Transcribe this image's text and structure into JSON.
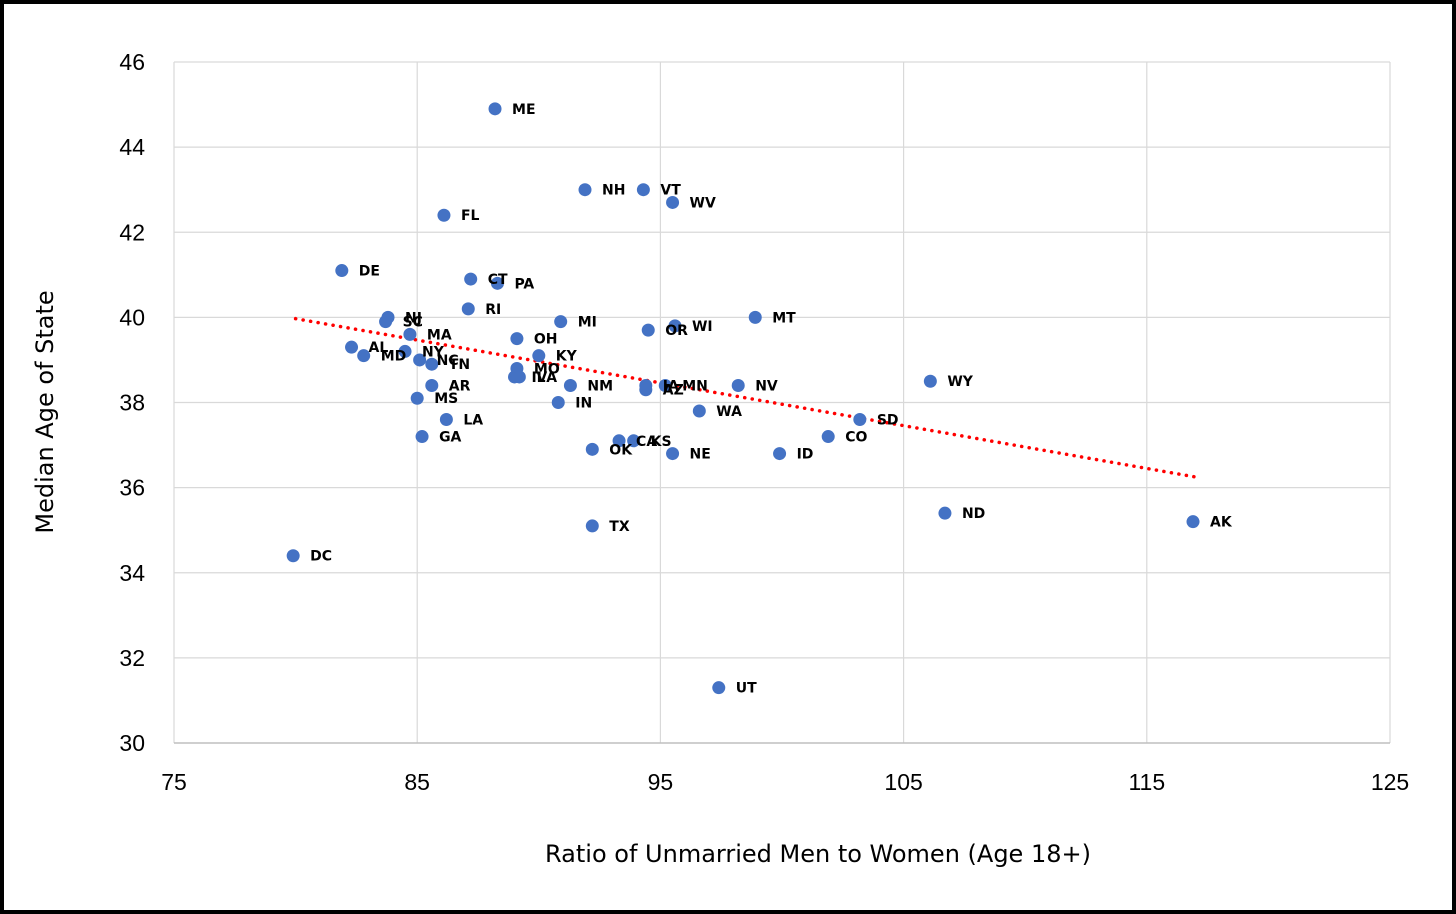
{
  "chart_data": {
    "type": "scatter",
    "title": "",
    "xlabel": "Ratio of Unmarried Men to Women (Age 18+)",
    "ylabel": "Median Age of State",
    "xlim": [
      75,
      125
    ],
    "ylim": [
      30,
      46
    ],
    "xticks": [
      75,
      85,
      95,
      105,
      115,
      125
    ],
    "yticks": [
      30,
      32,
      34,
      36,
      38,
      40,
      42,
      44,
      46
    ],
    "grid": true,
    "legend": "none",
    "point_color": "#4472C4",
    "trendline": {
      "style": "dotted",
      "color": "#FF0000",
      "x": [
        80,
        117
      ],
      "y": [
        39.97,
        36.25
      ]
    },
    "points": [
      {
        "label": "ME",
        "x": 88.2,
        "y": 44.9
      },
      {
        "label": "NH",
        "x": 91.9,
        "y": 43.0
      },
      {
        "label": "VT",
        "x": 94.3,
        "y": 43.0
      },
      {
        "label": "WV",
        "x": 95.5,
        "y": 42.7
      },
      {
        "label": "FL",
        "x": 86.1,
        "y": 42.4
      },
      {
        "label": "DE",
        "x": 81.9,
        "y": 41.1
      },
      {
        "label": "CT",
        "x": 87.2,
        "y": 40.9
      },
      {
        "label": "PA",
        "x": 88.3,
        "y": 40.8
      },
      {
        "label": "RI",
        "x": 87.1,
        "y": 40.2
      },
      {
        "label": "NJ",
        "x": 83.8,
        "y": 40.0
      },
      {
        "label": "SC",
        "x": 83.7,
        "y": 39.9
      },
      {
        "label": "MI",
        "x": 90.9,
        "y": 39.9
      },
      {
        "label": "MT",
        "x": 98.9,
        "y": 40.0
      },
      {
        "label": "WI",
        "x": 95.6,
        "y": 39.8
      },
      {
        "label": "OR",
        "x": 94.5,
        "y": 39.7
      },
      {
        "label": "MA",
        "x": 84.7,
        "y": 39.6
      },
      {
        "label": "OH",
        "x": 89.1,
        "y": 39.5
      },
      {
        "label": "AL",
        "x": 82.3,
        "y": 39.3
      },
      {
        "label": "MD",
        "x": 82.8,
        "y": 39.1
      },
      {
        "label": "NY",
        "x": 84.5,
        "y": 39.2
      },
      {
        "label": "NC",
        "x": 85.1,
        "y": 39.0
      },
      {
        "label": "TN",
        "x": 85.6,
        "y": 38.9
      },
      {
        "label": "KY",
        "x": 90.0,
        "y": 39.1
      },
      {
        "label": "MO",
        "x": 89.1,
        "y": 38.8
      },
      {
        "label": "IL",
        "x": 89.0,
        "y": 38.6
      },
      {
        "label": "VA",
        "x": 89.2,
        "y": 38.6
      },
      {
        "label": "NM",
        "x": 91.3,
        "y": 38.4
      },
      {
        "label": "IA",
        "x": 94.4,
        "y": 38.4
      },
      {
        "label": "AZ",
        "x": 94.4,
        "y": 38.3
      },
      {
        "label": "MN",
        "x": 95.2,
        "y": 38.4
      },
      {
        "label": "NV",
        "x": 98.2,
        "y": 38.4
      },
      {
        "label": "WY",
        "x": 106.1,
        "y": 38.5
      },
      {
        "label": "AR",
        "x": 85.6,
        "y": 38.4
      },
      {
        "label": "MS",
        "x": 85.0,
        "y": 38.1
      },
      {
        "label": "IN",
        "x": 90.8,
        "y": 38.0
      },
      {
        "label": "WA",
        "x": 96.6,
        "y": 37.8
      },
      {
        "label": "LA",
        "x": 86.2,
        "y": 37.6
      },
      {
        "label": "SD",
        "x": 103.2,
        "y": 37.6
      },
      {
        "label": "GA",
        "x": 85.2,
        "y": 37.2
      },
      {
        "label": "CO",
        "x": 101.9,
        "y": 37.2
      },
      {
        "label": "CA",
        "x": 93.3,
        "y": 37.1
      },
      {
        "label": "KS",
        "x": 93.9,
        "y": 37.1
      },
      {
        "label": "OK",
        "x": 92.2,
        "y": 36.9
      },
      {
        "label": "NE",
        "x": 95.5,
        "y": 36.8
      },
      {
        "label": "ID",
        "x": 99.9,
        "y": 36.8
      },
      {
        "label": "ND",
        "x": 106.7,
        "y": 35.4
      },
      {
        "label": "AK",
        "x": 116.9,
        "y": 35.2
      },
      {
        "label": "TX",
        "x": 92.2,
        "y": 35.1
      },
      {
        "label": "DC",
        "x": 79.9,
        "y": 34.4
      },
      {
        "label": "UT",
        "x": 97.4,
        "y": 31.3
      }
    ]
  }
}
